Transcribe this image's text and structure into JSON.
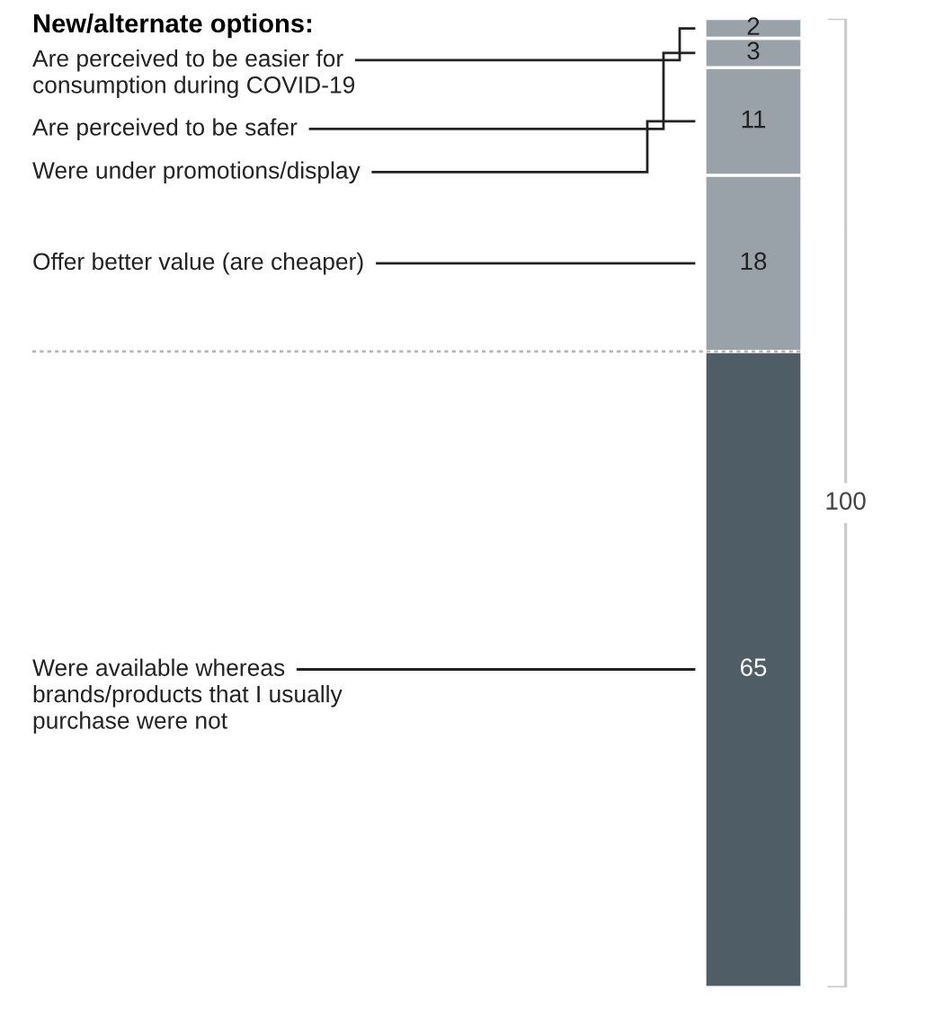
{
  "chart_data": {
    "type": "bar",
    "title": "New/alternate options:",
    "categories": [
      null
    ],
    "stacked": true,
    "data_labels": true,
    "totals": [
      "100"
    ],
    "series": [
      {
        "name": "Were available whereas brands/products that I usually purchase were not",
        "color": "#4f5d66",
        "values": [
          65
        ]
      },
      {
        "name": "Offer better value (are cheaper)",
        "color": "#9aa2a9",
        "values": [
          18
        ]
      },
      {
        "name": "Were under promotions/display",
        "color": "#9aa2a9",
        "values": [
          11
        ]
      },
      {
        "name": "Are perceived to be safer",
        "color": "#9aa2a9",
        "values": [
          3
        ]
      },
      {
        "name": "Are perceived to be easier for consumption during COVID-19",
        "color": "#9aa2a9",
        "values": [
          2
        ]
      }
    ],
    "ref_lines": [
      {
        "axis": "y",
        "value": 65,
        "line_style": "dotted",
        "color": "#b5b5b5"
      }
    ]
  }
}
